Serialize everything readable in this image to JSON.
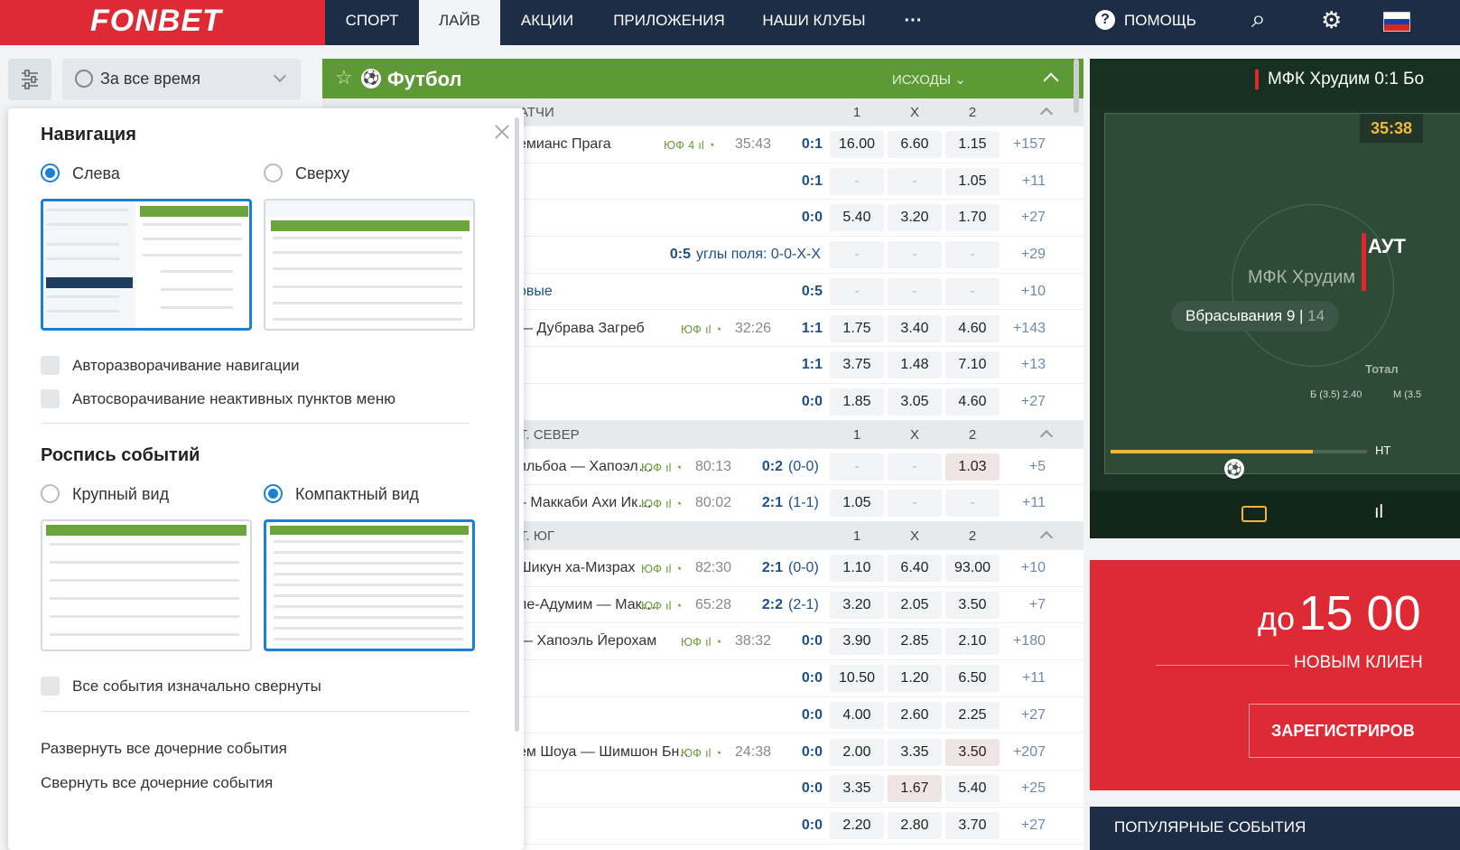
{
  "header": {
    "logo": "FONBET",
    "tabs": [
      {
        "label": "СПОРТ",
        "active": false
      },
      {
        "label": "ЛАЙВ",
        "active": true
      },
      {
        "label": "АКЦИИ",
        "active": false
      },
      {
        "label": "ПРИЛОЖЕНИЯ",
        "active": false
      },
      {
        "label": "НАШИ КЛУБЫ",
        "active": false
      },
      {
        "label": "···",
        "active": false
      }
    ],
    "help": "ПОМОЩЬ",
    "help_icon": "?",
    "search_icon": "⌕",
    "settings_icon": "⚙"
  },
  "filter": {
    "period": "За все время"
  },
  "settings_panel": {
    "nav_title": "Навигация",
    "nav_left": "Слева",
    "nav_top": "Сверху",
    "auto_expand": "Авторазворачивание навигации",
    "auto_collapse": "Автосворачивание неактивных пунктов меню",
    "events_title": "Роспись событий",
    "large_view": "Крупный вид",
    "compact_view": "Компактный вид",
    "all_collapsed": "Все события изначально свернуты",
    "expand_children": "Развернуть все дочерние события",
    "collapse_children": "Свернуть все дочерние события"
  },
  "football": {
    "star": "☆",
    "ball": "⚽",
    "title": "Футбол",
    "outcomes": "ИСХОДЫ"
  },
  "rows": [
    {
      "type": "section",
      "label": "атчи",
      "h1": "1",
      "hx": "X",
      "h2": "2"
    },
    {
      "type": "event",
      "name": "емианс Прага",
      "icons": [
        "ЮФ",
        "4",
        "ıl",
        "◔"
      ],
      "time": "35:43",
      "score": "0:1",
      "odds": [
        "16.00",
        "6.60",
        "1.15"
      ],
      "count": "+157"
    },
    {
      "type": "event",
      "name": "",
      "score": "0:1",
      "odds": [
        "-",
        "-",
        "1.05"
      ],
      "count": "+11"
    },
    {
      "type": "event",
      "name": "",
      "score": "0:0",
      "odds": [
        "5.40",
        "3.20",
        "1.70"
      ],
      "count": "+27"
    },
    {
      "type": "event",
      "name": "",
      "score": "0:5",
      "extra": "углы поля: 0-0-X-X",
      "odds": [
        "-",
        "-",
        "-"
      ],
      "count": "+29"
    },
    {
      "type": "event",
      "name": "овые",
      "score": "0:5",
      "odds": [
        "-",
        "-",
        "-"
      ],
      "count": "+10",
      "nameColor": "#1e4f8a"
    },
    {
      "type": "event",
      "name": "— Дубрава Загреб",
      "icons": [
        "ЮФ",
        "ıl",
        "◔"
      ],
      "time": "32:26",
      "score": "1:1",
      "odds": [
        "1.75",
        "3.40",
        "4.60"
      ],
      "count": "+143"
    },
    {
      "type": "event",
      "name": "",
      "score": "1:1",
      "odds": [
        "3.75",
        "1.48",
        "7.10"
      ],
      "count": "+13"
    },
    {
      "type": "event",
      "name": "",
      "score": "0:0",
      "odds": [
        "1.85",
        "3.05",
        "4.60"
      ],
      "count": "+27"
    },
    {
      "type": "section",
      "label": "т. Север",
      "h1": "1",
      "hx": "X",
      "h2": "2"
    },
    {
      "type": "event",
      "name": "ильбоа — Хапоэл…",
      "icons": [
        "ЮФ",
        "ıl",
        "◔"
      ],
      "time": "80:13",
      "score": "0:2",
      "extra": "(0-0)",
      "odds": [
        "-",
        "-",
        "1.03"
      ],
      "count": "+5",
      "hl": [
        2
      ]
    },
    {
      "type": "event",
      "name": "– Маккаби Ахи Ик…",
      "icons": [
        "ЮФ",
        "ıl",
        "◔"
      ],
      "time": "80:02",
      "score": "2:1",
      "extra": "(1-1)",
      "odds": [
        "1.05",
        "-",
        "-"
      ],
      "count": "+11"
    },
    {
      "type": "section",
      "label": "т. Юг",
      "h1": "1",
      "hx": "X",
      "h2": "2"
    },
    {
      "type": "event",
      "name": "Шикун ха-Мизрах",
      "icons": [
        "ЮФ",
        "ıl",
        "◔"
      ],
      "time": "82:30",
      "score": "2:1",
      "extra": "(0-0)",
      "odds": [
        "1.10",
        "6.40",
        "93.00"
      ],
      "count": "+10"
    },
    {
      "type": "event",
      "name": "ле-Адумим — Мак…",
      "icons": [
        "ЮФ",
        "ıl",
        "◔"
      ],
      "time": "65:28",
      "score": "2:2",
      "extra": "(2-1)",
      "odds": [
        "3.20",
        "2.05",
        "3.50"
      ],
      "count": "+7"
    },
    {
      "type": "event",
      "name": "— Хапоэль Йерохам",
      "icons": [
        "ЮФ",
        "ıl",
        "◔"
      ],
      "time": "38:32",
      "score": "0:0",
      "odds": [
        "3.90",
        "2.85",
        "2.10"
      ],
      "count": "+180"
    },
    {
      "type": "event",
      "name": "",
      "score": "0:0",
      "odds": [
        "10.50",
        "1.20",
        "6.50"
      ],
      "count": "+11"
    },
    {
      "type": "event",
      "name": "",
      "score": "0:0",
      "odds": [
        "4.00",
        "2.60",
        "2.25"
      ],
      "count": "+27"
    },
    {
      "type": "event",
      "name": "ем Шоуа — Шимшон Бн…",
      "icons": [
        "ЮФ",
        "ıl",
        "◔"
      ],
      "time": "24:38",
      "score": "0:0",
      "odds": [
        "2.00",
        "3.35",
        "3.50"
      ],
      "count": "+207",
      "hl": [
        2
      ]
    },
    {
      "type": "event",
      "name": "",
      "score": "0:0",
      "odds": [
        "3.35",
        "1.67",
        "5.40"
      ],
      "count": "+25",
      "hl": [
        1
      ]
    },
    {
      "type": "event",
      "name": "",
      "score": "0:0",
      "odds": [
        "2.20",
        "2.80",
        "3.70"
      ],
      "count": "+27"
    }
  ],
  "live_tv": {
    "match": "МФК Хрудим 0:1 Бо",
    "time": "35:38",
    "event": "АУТ",
    "team": "МФК Хрудим",
    "stat_label": "Вбрасывания",
    "stat_a": "9",
    "stat_b": "14",
    "total": "Тотал",
    "total_over": "Б (3.5) 2.40",
    "total_under": "М (3.5",
    "half": "HT",
    "ball": "⚽",
    "chart_icon": "ıl"
  },
  "promo": {
    "prefix": "до",
    "amount": "15 00",
    "subtitle": "НОВЫМ КЛИЕН",
    "register": "ЗАРЕГИСТРИРОВ"
  },
  "popular": "ПОПУЛЯРНЫЕ СОБЫТИЯ"
}
